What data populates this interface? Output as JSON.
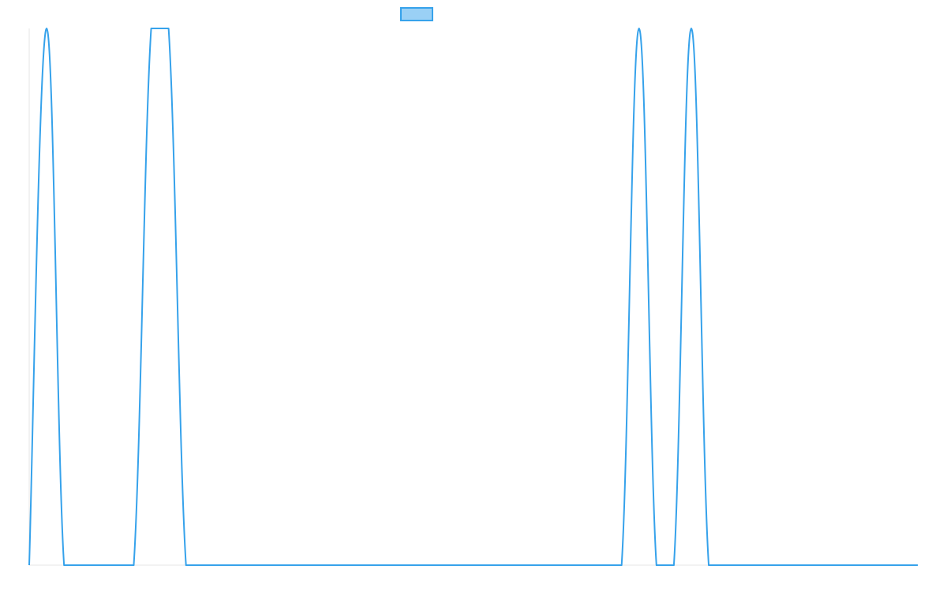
{
  "chart_data": {
    "type": "line",
    "title": "",
    "xlabel": "",
    "ylabel": "",
    "grid": false,
    "legend": {
      "placement": "top-center",
      "entries": [
        {
          "name": "",
          "swatch": "box"
        }
      ]
    },
    "x_range": [
      0,
      51
    ],
    "y_range": [
      0,
      1
    ],
    "x": [
      0,
      1,
      2,
      3,
      4,
      5,
      6,
      7,
      8,
      9,
      10,
      11,
      12,
      13,
      14,
      15,
      16,
      17,
      18,
      19,
      20,
      21,
      22,
      23,
      24,
      25,
      26,
      27,
      28,
      29,
      30,
      31,
      32,
      33,
      34,
      35,
      36,
      37,
      38,
      39,
      40,
      41,
      42,
      43,
      44,
      45,
      46,
      47,
      48,
      49,
      50,
      51
    ],
    "series": [
      {
        "values": [
          0,
          1,
          0,
          0,
          0,
          0,
          0,
          1,
          1,
          0,
          0,
          0,
          0,
          0,
          0,
          0,
          0,
          0,
          0,
          0,
          0,
          0,
          0,
          0,
          0,
          0,
          0,
          0,
          0,
          0,
          0,
          0,
          0,
          0,
          0,
          1,
          0,
          0,
          1,
          0,
          0,
          0,
          0,
          0,
          0,
          0,
          0,
          0,
          0,
          0,
          0,
          0
        ],
        "color": "#36a2eb",
        "fill": "#9ad0f5"
      }
    ],
    "axis_color": "#e5e5e5"
  }
}
